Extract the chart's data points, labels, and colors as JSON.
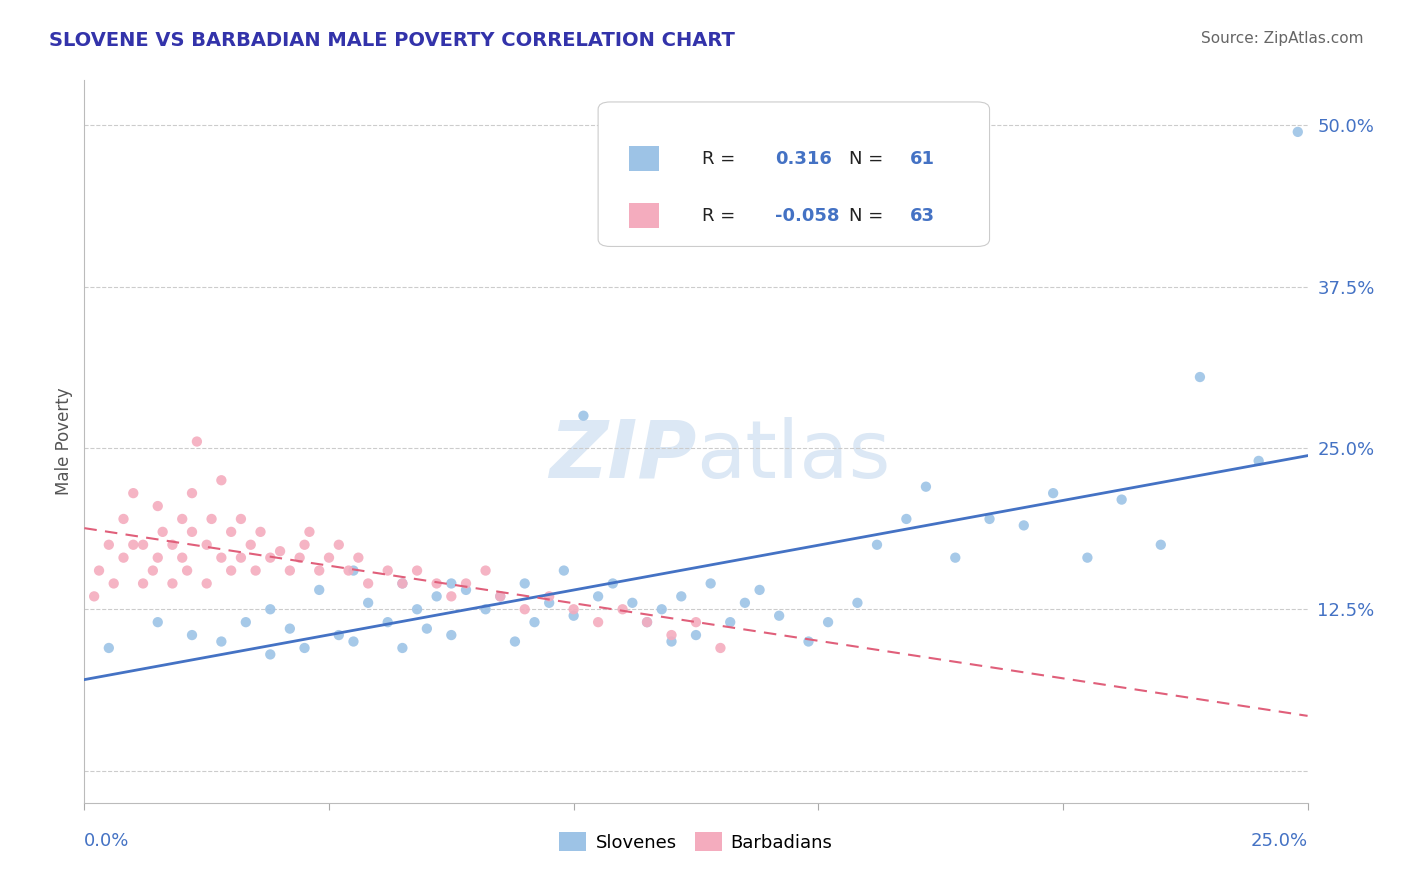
{
  "title": "SLOVENE VS BARBADIAN MALE POVERTY CORRELATION CHART",
  "source": "Source: ZipAtlas.com",
  "ylabel": "Male Poverty",
  "xlim": [
    0.0,
    0.25
  ],
  "ylim": [
    -0.025,
    0.535
  ],
  "yticks": [
    0.0,
    0.125,
    0.25,
    0.375,
    0.5
  ],
  "ytick_labels": [
    "",
    "12.5%",
    "25.0%",
    "37.5%",
    "50.0%"
  ],
  "legend_R_slovene": "0.316",
  "legend_N_slovene": "61",
  "legend_R_barbadian": "-0.058",
  "legend_N_barbadian": "63",
  "slovene_color": "#9dc3e6",
  "barbadian_color": "#f4acbe",
  "slovene_line_color": "#4472c4",
  "barbadian_line_color": "#e05f7a",
  "background_color": "#ffffff",
  "slovene_x": [
    0.005,
    0.015,
    0.022,
    0.028,
    0.033,
    0.038,
    0.038,
    0.042,
    0.045,
    0.048,
    0.052,
    0.055,
    0.055,
    0.058,
    0.062,
    0.065,
    0.065,
    0.068,
    0.07,
    0.072,
    0.075,
    0.075,
    0.078,
    0.082,
    0.085,
    0.088,
    0.09,
    0.092,
    0.095,
    0.098,
    0.1,
    0.102,
    0.105,
    0.108,
    0.112,
    0.115,
    0.118,
    0.12,
    0.122,
    0.125,
    0.128,
    0.132,
    0.135,
    0.138,
    0.142,
    0.148,
    0.152,
    0.158,
    0.162,
    0.168,
    0.172,
    0.178,
    0.185,
    0.192,
    0.198,
    0.205,
    0.212,
    0.22,
    0.228,
    0.24,
    0.248
  ],
  "slovene_y": [
    0.095,
    0.115,
    0.105,
    0.1,
    0.115,
    0.09,
    0.125,
    0.11,
    0.095,
    0.14,
    0.105,
    0.1,
    0.155,
    0.13,
    0.115,
    0.095,
    0.145,
    0.125,
    0.11,
    0.135,
    0.105,
    0.145,
    0.14,
    0.125,
    0.135,
    0.1,
    0.145,
    0.115,
    0.13,
    0.155,
    0.12,
    0.275,
    0.135,
    0.145,
    0.13,
    0.115,
    0.125,
    0.1,
    0.135,
    0.105,
    0.145,
    0.115,
    0.13,
    0.14,
    0.12,
    0.1,
    0.115,
    0.13,
    0.175,
    0.195,
    0.22,
    0.165,
    0.195,
    0.19,
    0.215,
    0.165,
    0.21,
    0.175,
    0.305,
    0.24,
    0.495
  ],
  "barbadian_x": [
    0.002,
    0.003,
    0.005,
    0.006,
    0.008,
    0.008,
    0.01,
    0.01,
    0.012,
    0.012,
    0.014,
    0.015,
    0.015,
    0.016,
    0.018,
    0.018,
    0.02,
    0.02,
    0.021,
    0.022,
    0.022,
    0.023,
    0.025,
    0.025,
    0.026,
    0.028,
    0.028,
    0.03,
    0.03,
    0.032,
    0.032,
    0.034,
    0.035,
    0.036,
    0.038,
    0.04,
    0.042,
    0.044,
    0.045,
    0.046,
    0.048,
    0.05,
    0.052,
    0.054,
    0.056,
    0.058,
    0.062,
    0.065,
    0.068,
    0.072,
    0.075,
    0.078,
    0.082,
    0.085,
    0.09,
    0.095,
    0.1,
    0.105,
    0.11,
    0.115,
    0.12,
    0.125,
    0.13
  ],
  "barbadian_y": [
    0.135,
    0.155,
    0.175,
    0.145,
    0.165,
    0.195,
    0.175,
    0.215,
    0.145,
    0.175,
    0.155,
    0.165,
    0.205,
    0.185,
    0.145,
    0.175,
    0.165,
    0.195,
    0.155,
    0.185,
    0.215,
    0.255,
    0.145,
    0.175,
    0.195,
    0.165,
    0.225,
    0.155,
    0.185,
    0.165,
    0.195,
    0.175,
    0.155,
    0.185,
    0.165,
    0.17,
    0.155,
    0.165,
    0.175,
    0.185,
    0.155,
    0.165,
    0.175,
    0.155,
    0.165,
    0.145,
    0.155,
    0.145,
    0.155,
    0.145,
    0.135,
    0.145,
    0.155,
    0.135,
    0.125,
    0.135,
    0.125,
    0.115,
    0.125,
    0.115,
    0.105,
    0.115,
    0.095
  ]
}
